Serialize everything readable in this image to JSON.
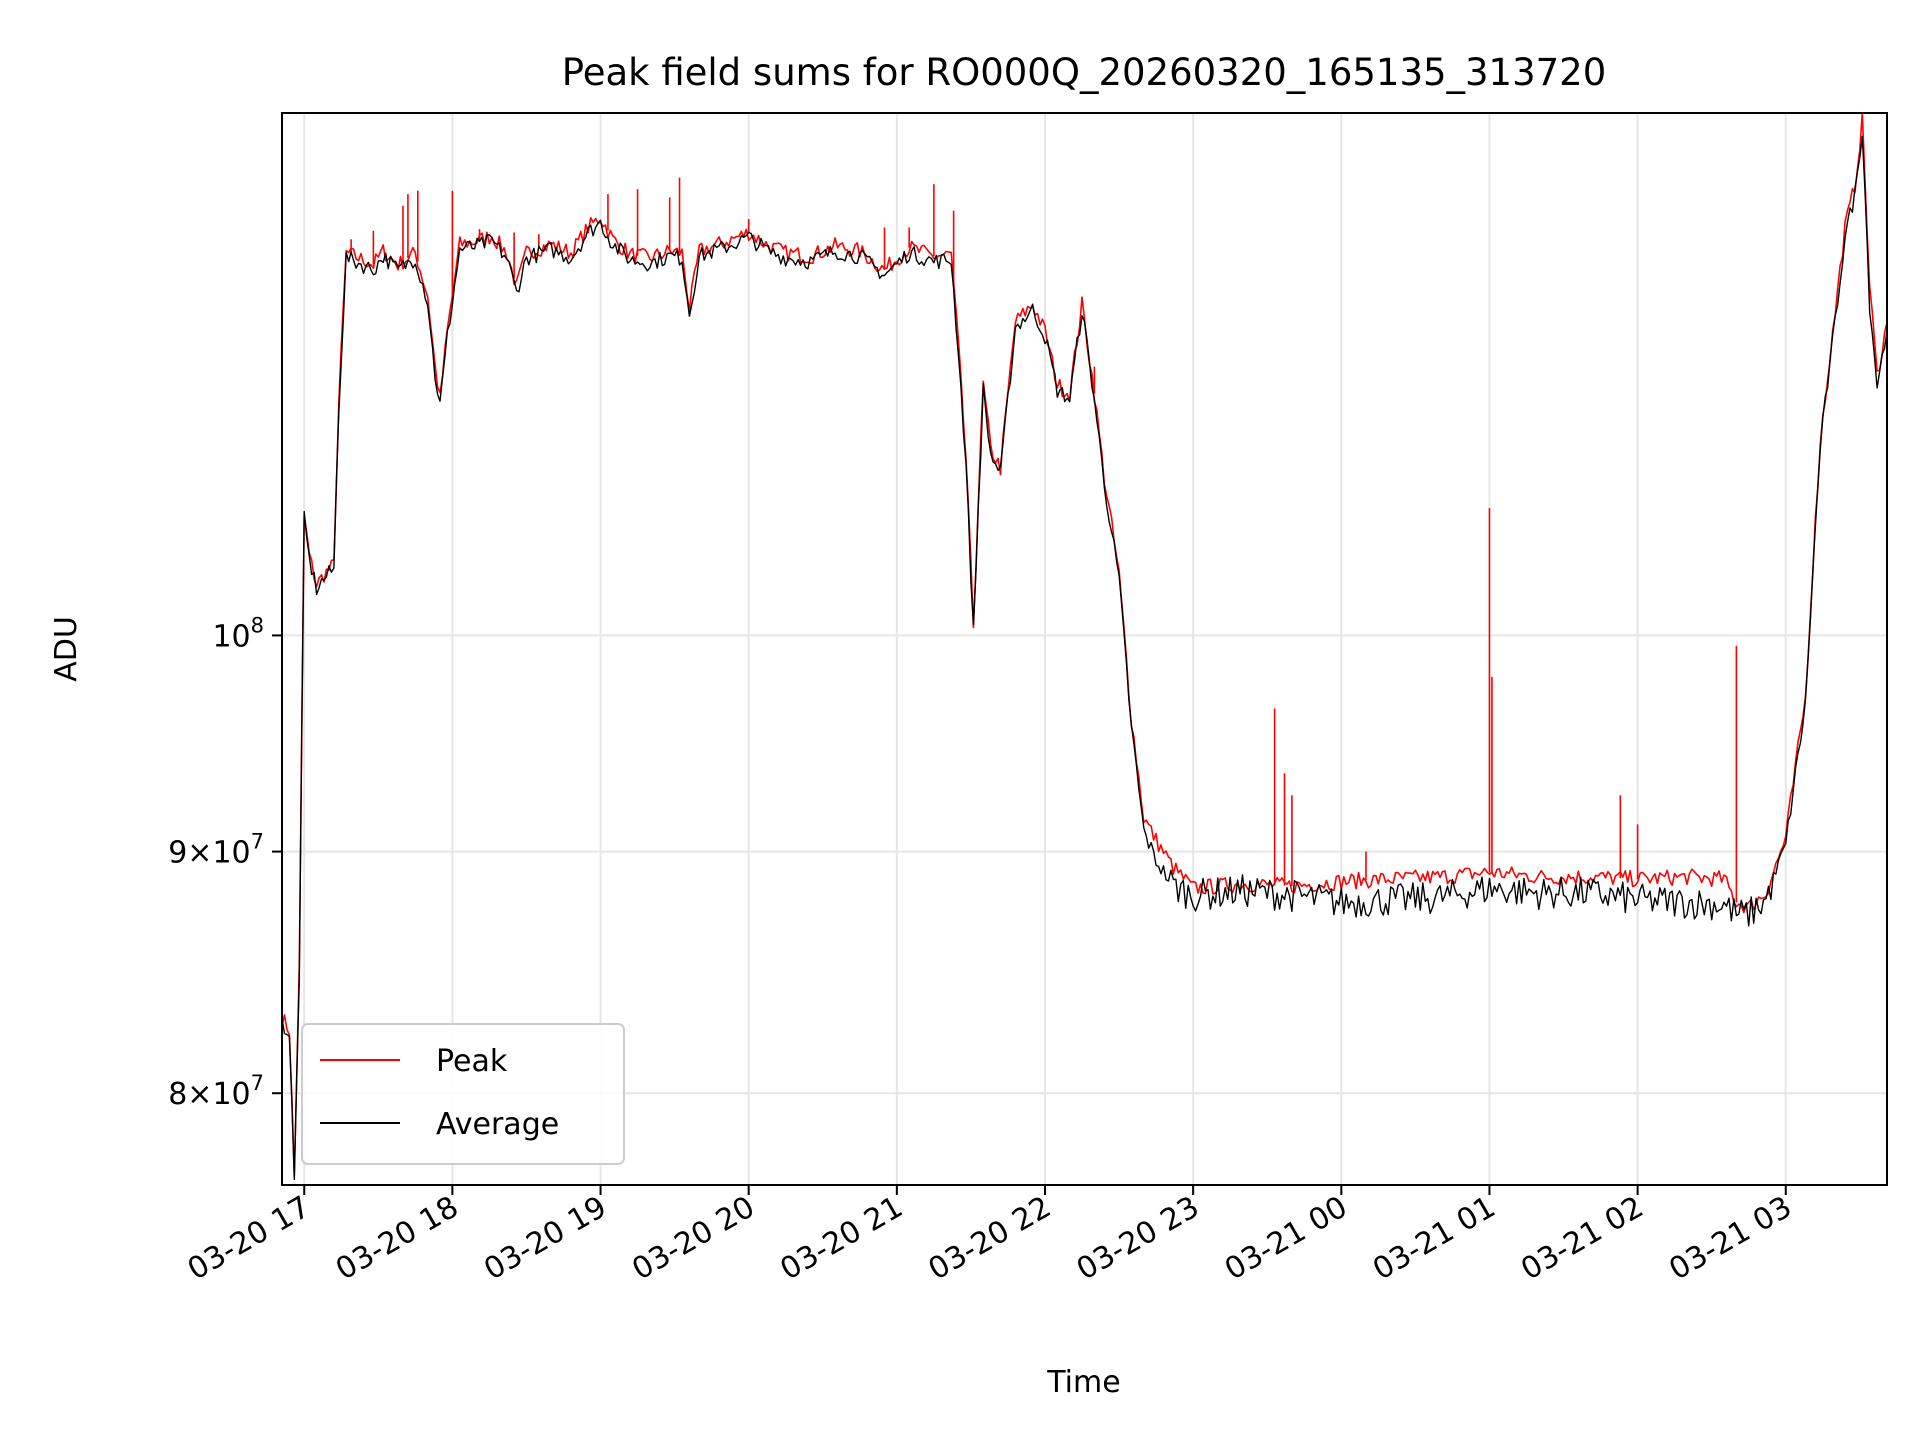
{
  "chart_data": {
    "type": "line",
    "title": "Peak field sums for RO000Q_20260320_165135_313720",
    "xlabel": "Time",
    "ylabel": "ADU",
    "yscale": "log",
    "grid": true,
    "legend_position": "lower-left",
    "x_ticks": [
      "03-20 17",
      "03-20 18",
      "03-20 19",
      "03-20 20",
      "03-20 21",
      "03-20 22",
      "03-20 23",
      "03-21 00",
      "03-21 01",
      "03-21 02",
      "03-21 03"
    ],
    "y_ticks": [
      {
        "value": 80000000,
        "base": "8",
        "mantissa_sep": "×",
        "power": "10",
        "exponent": "7"
      },
      {
        "value": 90000000,
        "base": "9",
        "mantissa_sep": "×",
        "power": "10",
        "exponent": "7"
      },
      {
        "value": 100000000,
        "base": "",
        "mantissa_sep": "",
        "power": "10",
        "exponent": "8"
      }
    ],
    "xlim": [
      "2026-03-20 16:51",
      "2026-03-21 03:41"
    ],
    "ylim": [
      76500000,
      129000000
    ],
    "series": [
      {
        "name": "Peak",
        "color": "#ff0000",
        "points": [
          [
            "2026-03-20 16:51",
            83000000
          ],
          [
            "2026-03-20 16:54",
            82500000
          ],
          [
            "2026-03-20 16:56",
            76800000
          ],
          [
            "2026-03-20 16:58",
            85000000
          ],
          [
            "2026-03-20 17:00",
            106000000
          ],
          [
            "2026-03-20 17:02",
            104000000
          ],
          [
            "2026-03-20 17:05",
            102500000
          ],
          [
            "2026-03-20 17:08",
            103000000
          ],
          [
            "2026-03-20 17:12",
            103500000
          ],
          [
            "2026-03-20 17:14",
            112000000
          ],
          [
            "2026-03-20 17:17",
            120500000
          ],
          [
            "2026-03-20 17:22",
            120200000
          ],
          [
            "2026-03-20 17:28",
            119800000
          ],
          [
            "2026-03-20 17:32",
            120600000
          ],
          [
            "2026-03-20 17:38",
            119800000
          ],
          [
            "2026-03-20 17:45",
            120500000
          ],
          [
            "2026-03-20 17:50",
            118000000
          ],
          [
            "2026-03-20 17:53",
            114000000
          ],
          [
            "2026-03-20 17:55",
            112200000
          ],
          [
            "2026-03-20 17:58",
            116000000
          ],
          [
            "2026-03-20 18:03",
            121000000
          ],
          [
            "2026-03-20 18:10",
            121200000
          ],
          [
            "2026-03-20 18:16",
            121500000
          ],
          [
            "2026-03-20 18:22",
            120500000
          ],
          [
            "2026-03-20 18:26",
            118500000
          ],
          [
            "2026-03-20 18:30",
            120500000
          ],
          [
            "2026-03-20 18:40",
            121000000
          ],
          [
            "2026-03-20 18:48",
            120500000
          ],
          [
            "2026-03-20 18:55",
            122000000
          ],
          [
            "2026-03-20 19:00",
            122600000
          ],
          [
            "2026-03-20 19:05",
            121300000
          ],
          [
            "2026-03-20 19:12",
            120400000
          ],
          [
            "2026-03-20 19:20",
            120200000
          ],
          [
            "2026-03-20 19:28",
            120600000
          ],
          [
            "2026-03-20 19:33",
            120500000
          ],
          [
            "2026-03-20 19:36",
            117300000
          ],
          [
            "2026-03-20 19:40",
            120600000
          ],
          [
            "2026-03-20 19:50",
            121100000
          ],
          [
            "2026-03-20 20:00",
            121700000
          ],
          [
            "2026-03-20 20:08",
            120900000
          ],
          [
            "2026-03-20 20:15",
            120500000
          ],
          [
            "2026-03-20 20:25",
            120300000
          ],
          [
            "2026-03-20 20:35",
            120900000
          ],
          [
            "2026-03-20 20:45",
            120600000
          ],
          [
            "2026-03-20 20:55",
            119500000
          ],
          [
            "2026-03-20 21:05",
            120800000
          ],
          [
            "2026-03-20 21:15",
            120300000
          ],
          [
            "2026-03-20 21:22",
            120400000
          ],
          [
            "2026-03-20 21:25",
            115000000
          ],
          [
            "2026-03-20 21:28",
            109000000
          ],
          [
            "2026-03-20 21:31",
            100500000
          ],
          [
            "2026-03-20 21:35",
            113000000
          ],
          [
            "2026-03-20 21:38",
            109500000
          ],
          [
            "2026-03-20 21:42",
            108500000
          ],
          [
            "2026-03-20 21:48",
            116500000
          ],
          [
            "2026-03-20 21:55",
            117500000
          ],
          [
            "2026-03-20 22:00",
            116000000
          ],
          [
            "2026-03-20 22:05",
            113000000
          ],
          [
            "2026-03-20 22:10",
            112500000
          ],
          [
            "2026-03-20 22:15",
            117500000
          ],
          [
            "2026-03-20 22:20",
            112500000
          ],
          [
            "2026-03-20 22:24",
            108000000
          ],
          [
            "2026-03-20 22:30",
            103000000
          ],
          [
            "2026-03-20 22:35",
            96000000
          ],
          [
            "2026-03-20 22:40",
            91500000
          ],
          [
            "2026-03-20 22:45",
            90500000
          ],
          [
            "2026-03-20 22:52",
            89300000
          ],
          [
            "2026-03-20 23:00",
            88400000
          ],
          [
            "2026-03-20 23:20",
            88600000
          ],
          [
            "2026-03-20 23:40",
            88500000
          ],
          [
            "2026-03-21 00:00",
            88700000
          ],
          [
            "2026-03-21 00:20",
            88800000
          ],
          [
            "2026-03-21 00:40",
            88900000
          ],
          [
            "2026-03-21 01:00",
            89100000
          ],
          [
            "2026-03-21 01:20",
            88900000
          ],
          [
            "2026-03-21 01:40",
            88900000
          ],
          [
            "2026-03-21 02:00",
            88800000
          ],
          [
            "2026-03-21 02:20",
            88900000
          ],
          [
            "2026-03-21 02:35",
            88800000
          ],
          [
            "2026-03-21 02:40",
            87800000
          ],
          [
            "2026-03-21 02:45",
            87600000
          ],
          [
            "2026-03-21 02:52",
            88200000
          ],
          [
            "2026-03-21 03:00",
            90600000
          ],
          [
            "2026-03-21 03:08",
            97000000
          ],
          [
            "2026-03-21 03:14",
            110000000
          ],
          [
            "2026-03-21 03:20",
            117000000
          ],
          [
            "2026-03-21 03:24",
            122000000
          ],
          [
            "2026-03-21 03:28",
            124500000
          ],
          [
            "2026-03-21 03:31",
            128500000
          ],
          [
            "2026-03-21 03:34",
            118500000
          ],
          [
            "2026-03-21 03:37",
            113500000
          ],
          [
            "2026-03-21 03:41",
            116500000
          ]
        ],
        "spikes": [
          [
            "2026-03-20 17:19",
            121300000
          ],
          [
            "2026-03-20 17:28",
            121800000
          ],
          [
            "2026-03-20 17:40",
            123300000
          ],
          [
            "2026-03-20 17:42",
            124000000
          ],
          [
            "2026-03-20 17:46",
            124200000
          ],
          [
            "2026-03-20 18:00",
            124200000
          ],
          [
            "2026-03-20 18:11",
            121900000
          ],
          [
            "2026-03-20 18:25",
            121700000
          ],
          [
            "2026-03-20 18:35",
            121600000
          ],
          [
            "2026-03-20 19:03",
            124000000
          ],
          [
            "2026-03-20 19:15",
            124300000
          ],
          [
            "2026-03-20 19:28",
            123800000
          ],
          [
            "2026-03-20 19:32",
            125000000
          ],
          [
            "2026-03-20 20:00",
            122500000
          ],
          [
            "2026-03-20 20:55",
            122000000
          ],
          [
            "2026-03-20 21:05",
            122000000
          ],
          [
            "2026-03-20 21:15",
            124600000
          ],
          [
            "2026-03-20 21:23",
            123000000
          ],
          [
            "2026-03-20 22:20",
            114000000
          ],
          [
            "2026-03-20 23:33",
            96500000
          ],
          [
            "2026-03-20 23:37",
            93500000
          ],
          [
            "2026-03-20 23:40",
            92500000
          ],
          [
            "2026-03-21 00:10",
            90000000
          ],
          [
            "2026-03-21 01:00",
            106400000
          ],
          [
            "2026-03-21 01:01",
            98000000
          ],
          [
            "2026-03-21 01:53",
            92500000
          ],
          [
            "2026-03-21 02:00",
            91200000
          ],
          [
            "2026-03-21 02:40",
            99500000
          ]
        ]
      },
      {
        "name": "Average",
        "color": "#000000",
        "points": [
          [
            "2026-03-20 16:51",
            82800000
          ],
          [
            "2026-03-20 16:54",
            82300000
          ],
          [
            "2026-03-20 16:56",
            76600000
          ],
          [
            "2026-03-20 16:58",
            84800000
          ],
          [
            "2026-03-20 17:00",
            105800000
          ],
          [
            "2026-03-20 17:02",
            103800000
          ],
          [
            "2026-03-20 17:05",
            102300000
          ],
          [
            "2026-03-20 17:08",
            102800000
          ],
          [
            "2026-03-20 17:12",
            103300000
          ],
          [
            "2026-03-20 17:14",
            111800000
          ],
          [
            "2026-03-20 17:17",
            120200000
          ],
          [
            "2026-03-20 17:22",
            119900000
          ],
          [
            "2026-03-20 17:28",
            119500000
          ],
          [
            "2026-03-20 17:32",
            120300000
          ],
          [
            "2026-03-20 17:38",
            119500000
          ],
          [
            "2026-03-20 17:45",
            120200000
          ],
          [
            "2026-03-20 17:50",
            117700000
          ],
          [
            "2026-03-20 17:53",
            113500000
          ],
          [
            "2026-03-20 17:55",
            111900000
          ],
          [
            "2026-03-20 17:58",
            115700000
          ],
          [
            "2026-03-20 18:03",
            120700000
          ],
          [
            "2026-03-20 18:10",
            120900000
          ],
          [
            "2026-03-20 18:16",
            121200000
          ],
          [
            "2026-03-20 18:22",
            120200000
          ],
          [
            "2026-03-20 18:26",
            118200000
          ],
          [
            "2026-03-20 18:30",
            120200000
          ],
          [
            "2026-03-20 18:40",
            120700000
          ],
          [
            "2026-03-20 18:48",
            120200000
          ],
          [
            "2026-03-20 18:55",
            121700000
          ],
          [
            "2026-03-20 19:00",
            122300000
          ],
          [
            "2026-03-20 19:05",
            121000000
          ],
          [
            "2026-03-20 19:12",
            120100000
          ],
          [
            "2026-03-20 19:20",
            119900000
          ],
          [
            "2026-03-20 19:28",
            120300000
          ],
          [
            "2026-03-20 19:33",
            120200000
          ],
          [
            "2026-03-20 19:36",
            117000000
          ],
          [
            "2026-03-20 19:40",
            120300000
          ],
          [
            "2026-03-20 19:50",
            120800000
          ],
          [
            "2026-03-20 20:00",
            121400000
          ],
          [
            "2026-03-20 20:08",
            120600000
          ],
          [
            "2026-03-20 20:15",
            120200000
          ],
          [
            "2026-03-20 20:25",
            120000000
          ],
          [
            "2026-03-20 20:35",
            120600000
          ],
          [
            "2026-03-20 20:45",
            120300000
          ],
          [
            "2026-03-20 20:55",
            119200000
          ],
          [
            "2026-03-20 21:05",
            120500000
          ],
          [
            "2026-03-20 21:15",
            120000000
          ],
          [
            "2026-03-20 21:22",
            120100000
          ],
          [
            "2026-03-20 21:25",
            114700000
          ],
          [
            "2026-03-20 21:28",
            108700000
          ],
          [
            "2026-03-20 21:31",
            100200000
          ],
          [
            "2026-03-20 21:35",
            112700000
          ],
          [
            "2026-03-20 21:38",
            109200000
          ],
          [
            "2026-03-20 21:42",
            108200000
          ],
          [
            "2026-03-20 21:48",
            116200000
          ],
          [
            "2026-03-20 21:55",
            117200000
          ],
          [
            "2026-03-20 22:00",
            115700000
          ],
          [
            "2026-03-20 22:05",
            112700000
          ],
          [
            "2026-03-20 22:10",
            112200000
          ],
          [
            "2026-03-20 22:15",
            117200000
          ],
          [
            "2026-03-20 22:20",
            112200000
          ],
          [
            "2026-03-20 22:24",
            107700000
          ],
          [
            "2026-03-20 22:30",
            102700000
          ],
          [
            "2026-03-20 22:35",
            95600000
          ],
          [
            "2026-03-20 22:40",
            90900000
          ],
          [
            "2026-03-20 22:45",
            89600000
          ],
          [
            "2026-03-20 22:52",
            88500000
          ],
          [
            "2026-03-20 23:00",
            88100000
          ],
          [
            "2026-03-20 23:20",
            88300000
          ],
          [
            "2026-03-20 23:40",
            88100000
          ],
          [
            "2026-03-21 00:00",
            87800000
          ],
          [
            "2026-03-21 00:20",
            87900000
          ],
          [
            "2026-03-21 00:40",
            88000000
          ],
          [
            "2026-03-21 01:00",
            88400000
          ],
          [
            "2026-03-21 01:20",
            88200000
          ],
          [
            "2026-03-21 01:40",
            88200000
          ],
          [
            "2026-03-21 02:00",
            87900000
          ],
          [
            "2026-03-21 02:20",
            87800000
          ],
          [
            "2026-03-21 02:35",
            87700000
          ],
          [
            "2026-03-21 02:40",
            87300000
          ],
          [
            "2026-03-21 02:45",
            87300000
          ],
          [
            "2026-03-21 02:52",
            87900000
          ],
          [
            "2026-03-21 03:00",
            90300000
          ],
          [
            "2026-03-21 03:08",
            96700000
          ],
          [
            "2026-03-21 03:14",
            109700000
          ],
          [
            "2026-03-21 03:20",
            116500000
          ],
          [
            "2026-03-21 03:24",
            121500000
          ],
          [
            "2026-03-21 03:28",
            124000000
          ],
          [
            "2026-03-21 03:31",
            128000000
          ],
          [
            "2026-03-21 03:34",
            117500000
          ],
          [
            "2026-03-21 03:37",
            113000000
          ],
          [
            "2026-03-21 03:41",
            116000000
          ]
        ]
      }
    ]
  }
}
